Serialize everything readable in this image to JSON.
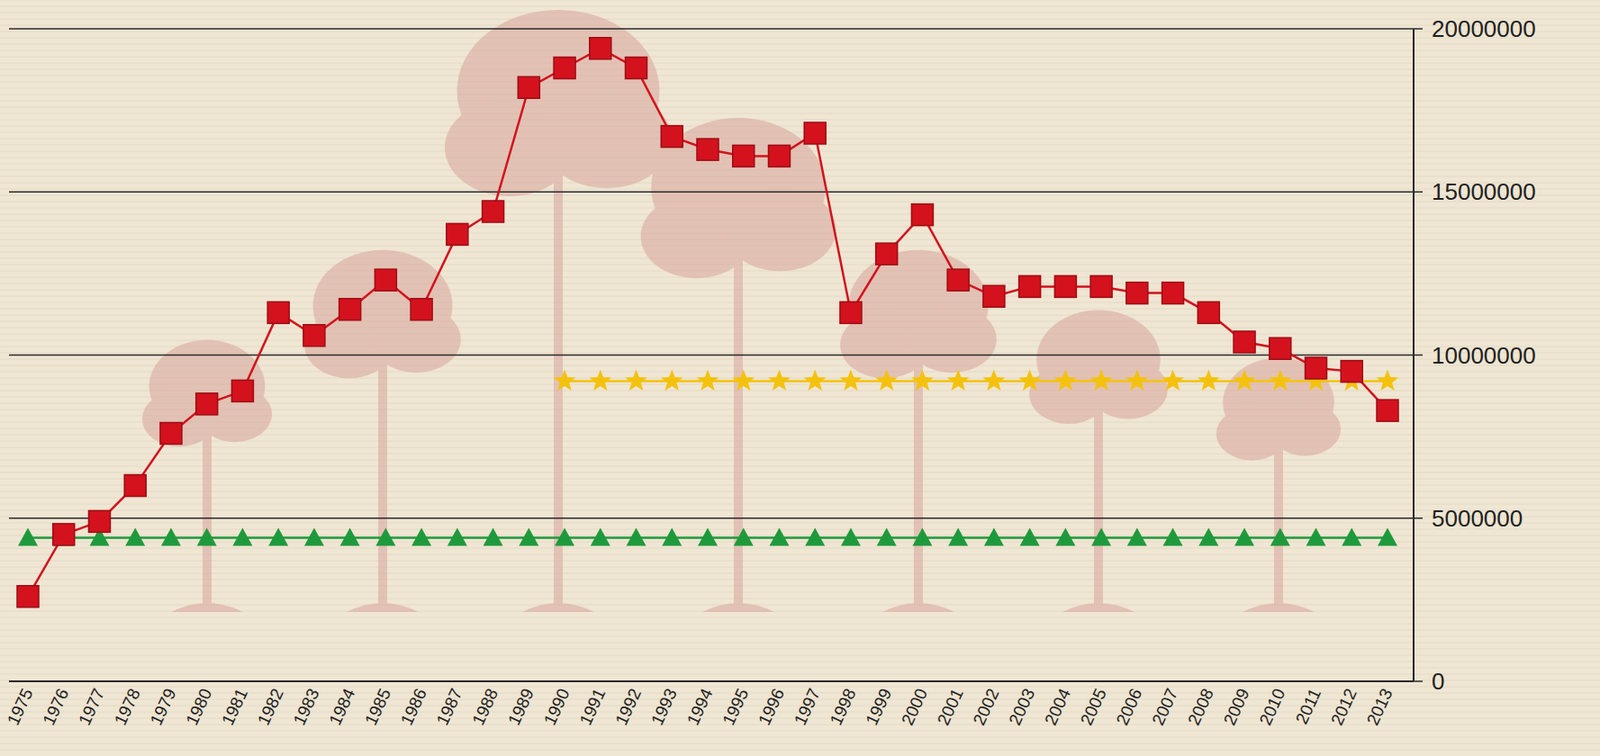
{
  "chart_data": {
    "type": "line",
    "categories": [
      "1975",
      "1976",
      "1977",
      "1978",
      "1979",
      "1980",
      "1981",
      "1982",
      "1983",
      "1984",
      "1985",
      "1986",
      "1987",
      "1988",
      "1989",
      "1990",
      "1991",
      "1992",
      "1993",
      "1994",
      "1995",
      "1996",
      "1997",
      "1998",
      "1999",
      "2000",
      "2001",
      "2002",
      "2003",
      "2004",
      "2005",
      "2006",
      "2007",
      "2008",
      "2009",
      "2010",
      "2011",
      "2012",
      "2013"
    ],
    "series": [
      {
        "color": "#d3121e",
        "marker": "square",
        "line_style": "solid",
        "values": [
          2600000,
          4500000,
          4900000,
          6000000,
          7600000,
          8500000,
          8900000,
          11300000,
          10600000,
          11400000,
          12300000,
          11400000,
          13700000,
          14400000,
          18200000,
          18800000,
          19400000,
          18800000,
          16700000,
          16300000,
          16100000,
          16100000,
          16800000,
          11300000,
          13100000,
          14300000,
          12300000,
          11800000,
          12100000,
          12100000,
          12100000,
          11900000,
          11900000,
          11300000,
          10400000,
          10200000,
          9600000,
          9500000,
          8300000
        ]
      },
      {
        "color": "#f4c20d",
        "marker": "star",
        "line_style": "solid",
        "values": [
          null,
          null,
          null,
          null,
          null,
          null,
          null,
          null,
          null,
          null,
          null,
          null,
          null,
          null,
          null,
          9200000,
          9200000,
          9200000,
          9200000,
          9200000,
          9200000,
          9200000,
          9200000,
          9200000,
          9200000,
          9200000,
          9200000,
          9200000,
          9200000,
          9200000,
          9200000,
          9200000,
          9200000,
          9200000,
          9200000,
          9200000,
          9200000,
          9200000,
          9200000
        ]
      },
      {
        "color": "#1e9a3c",
        "marker": "triangle",
        "line_style": "solid",
        "values": [
          4400000,
          4400000,
          4400000,
          4400000,
          4400000,
          4400000,
          4400000,
          4400000,
          4400000,
          4400000,
          4400000,
          4400000,
          4400000,
          4400000,
          4400000,
          4400000,
          4400000,
          4400000,
          4400000,
          4400000,
          4400000,
          4400000,
          4400000,
          4400000,
          4400000,
          4400000,
          4400000,
          4400000,
          4400000,
          4400000,
          4400000,
          4400000,
          4400000,
          4400000,
          4400000,
          4400000,
          4400000,
          4400000,
          4400000
        ]
      }
    ],
    "ylim": [
      0,
      20000000
    ],
    "yticks": [
      0,
      5000000,
      10000000,
      15000000,
      20000000
    ],
    "grid": true
  }
}
